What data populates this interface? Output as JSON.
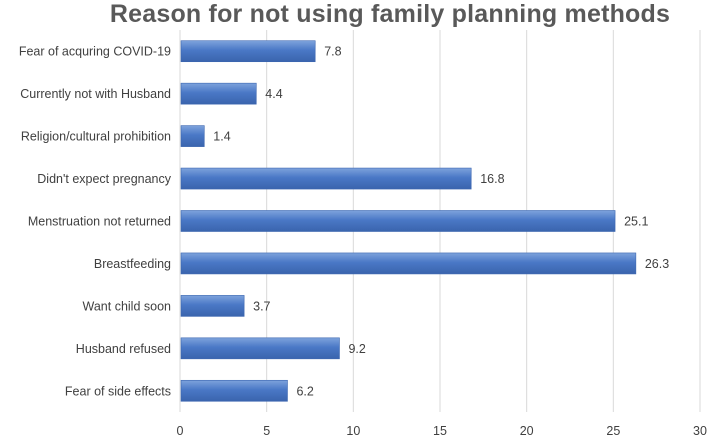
{
  "chart_data": {
    "type": "bar",
    "orientation": "horizontal",
    "title": "Reason for not using family planning methods",
    "categories": [
      "Fear of acquring COVID-19",
      "Currently not with Husband",
      "Religion/cultural prohibition",
      "Didn't expect pregnancy",
      "Menstruation not returned",
      "Breastfeeding",
      "Want child soon",
      "Husband refused",
      "Fear of side effects"
    ],
    "values": [
      7.8,
      4.4,
      1.4,
      16.8,
      25.1,
      26.3,
      3.7,
      9.2,
      6.2
    ],
    "value_labels": [
      "7.8",
      "4.4",
      "1.4",
      "16.8",
      "25.1",
      "26.3",
      "3.7",
      "9.2",
      "6.2"
    ],
    "xlim": [
      0,
      30
    ],
    "xticks": [
      0,
      5,
      10,
      15,
      20,
      25,
      30
    ],
    "xtick_labels": [
      "0",
      "5",
      "10",
      "15",
      "20",
      "25",
      "30"
    ],
    "xlabel": "",
    "ylabel": "",
    "grid": true,
    "grid_axis": "x",
    "legend": "none",
    "bar_color": "#4472C4",
    "grid_color": "#d9d9d9"
  }
}
